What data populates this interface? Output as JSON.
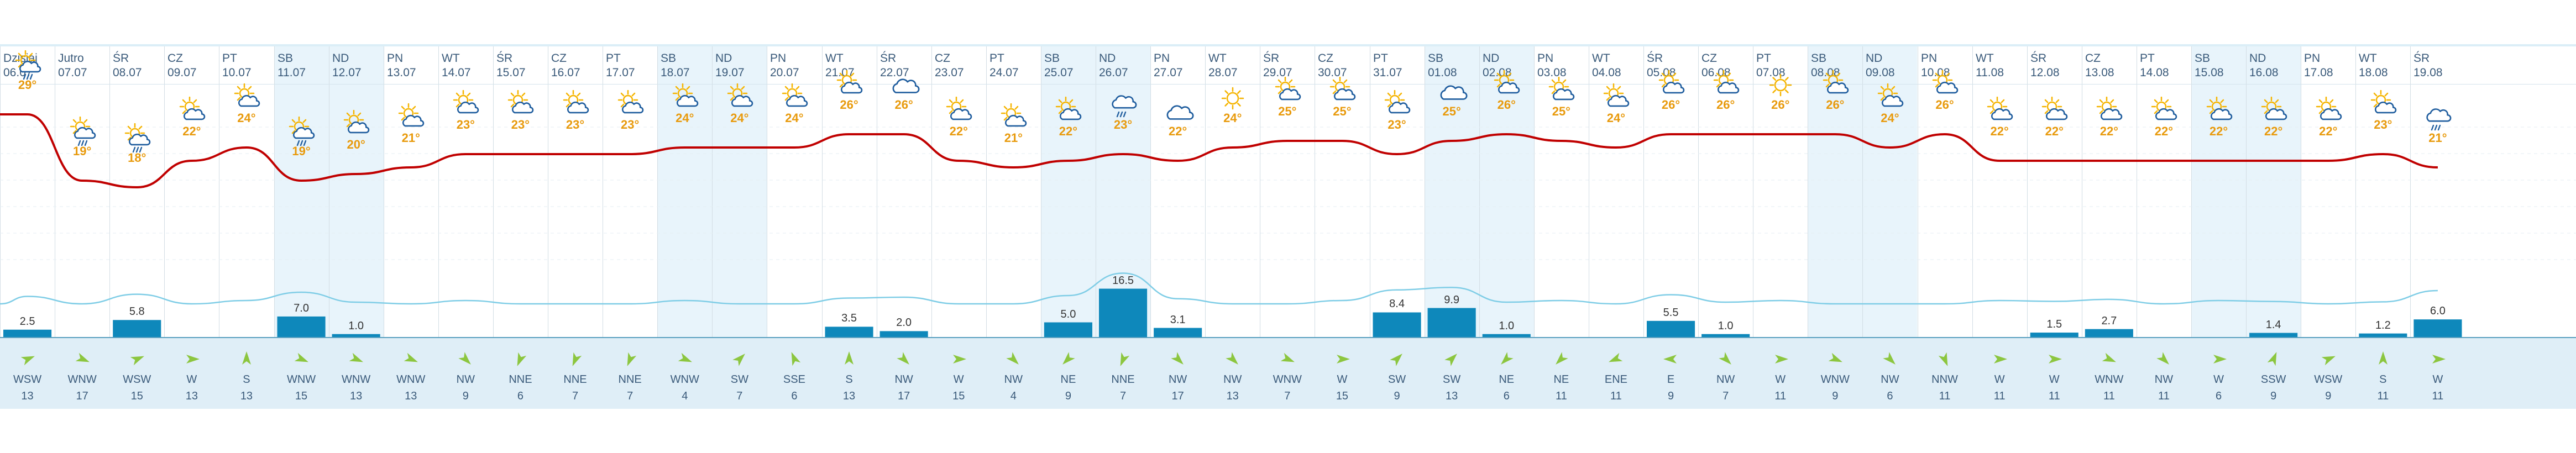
{
  "forecast": {
    "days": [
      {
        "day": "Dzisiaj",
        "date": "06.07",
        "weekend": false,
        "icon": "sun-cloud-rain-icon",
        "temp": "29°",
        "precip": 2.5,
        "precip_label": "2.5",
        "wind_dir": "WSW",
        "wind_speed": "13"
      },
      {
        "day": "Jutro",
        "date": "07.07",
        "weekend": false,
        "icon": "sun-cloud-rain-icon",
        "temp": "19°",
        "precip": 0,
        "precip_label": "",
        "wind_dir": "WNW",
        "wind_speed": "17"
      },
      {
        "day": "ŚR",
        "date": "08.07",
        "weekend": false,
        "icon": "sun-cloud-rain-icon",
        "temp": "18°",
        "precip": 5.8,
        "precip_label": "5.8",
        "wind_dir": "WSW",
        "wind_speed": "15"
      },
      {
        "day": "CZ",
        "date": "09.07",
        "weekend": false,
        "icon": "sun-cloud-icon",
        "temp": "22°",
        "precip": 0,
        "precip_label": "",
        "wind_dir": "W",
        "wind_speed": "13"
      },
      {
        "day": "PT",
        "date": "10.07",
        "weekend": false,
        "icon": "sun-cloud-icon",
        "temp": "24°",
        "precip": 0,
        "precip_label": "",
        "wind_dir": "S",
        "wind_speed": "13"
      },
      {
        "day": "SB",
        "date": "11.07",
        "weekend": true,
        "icon": "sun-cloud-rain-icon",
        "temp": "19°",
        "precip": 7.0,
        "precip_label": "7.0",
        "wind_dir": "WNW",
        "wind_speed": "15"
      },
      {
        "day": "ND",
        "date": "12.07",
        "weekend": true,
        "icon": "sun-cloud-icon",
        "temp": "20°",
        "precip": 1.0,
        "precip_label": "1.0",
        "wind_dir": "WNW",
        "wind_speed": "13"
      },
      {
        "day": "PN",
        "date": "13.07",
        "weekend": false,
        "icon": "sun-cloud-icon",
        "temp": "21°",
        "precip": 0,
        "precip_label": "",
        "wind_dir": "WNW",
        "wind_speed": "13"
      },
      {
        "day": "WT",
        "date": "14.07",
        "weekend": false,
        "icon": "sun-cloud-icon",
        "temp": "23°",
        "precip": 0,
        "precip_label": "",
        "wind_dir": "NW",
        "wind_speed": "9"
      },
      {
        "day": "ŚR",
        "date": "15.07",
        "weekend": false,
        "icon": "sun-cloud-icon",
        "temp": "23°",
        "precip": 0,
        "precip_label": "",
        "wind_dir": "NNE",
        "wind_speed": "6"
      },
      {
        "day": "CZ",
        "date": "16.07",
        "weekend": false,
        "icon": "sun-cloud-icon",
        "temp": "23°",
        "precip": 0,
        "precip_label": "",
        "wind_dir": "NNE",
        "wind_speed": "7"
      },
      {
        "day": "PT",
        "date": "17.07",
        "weekend": false,
        "icon": "sun-cloud-icon",
        "temp": "23°",
        "precip": 0,
        "precip_label": "",
        "wind_dir": "NNE",
        "wind_speed": "7"
      },
      {
        "day": "SB",
        "date": "18.07",
        "weekend": true,
        "icon": "sun-cloud-icon",
        "temp": "24°",
        "precip": 0,
        "precip_label": "",
        "wind_dir": "WNW",
        "wind_speed": "4"
      },
      {
        "day": "ND",
        "date": "19.07",
        "weekend": true,
        "icon": "sun-cloud-icon",
        "temp": "24°",
        "precip": 0,
        "precip_label": "",
        "wind_dir": "SW",
        "wind_speed": "7"
      },
      {
        "day": "PN",
        "date": "20.07",
        "weekend": false,
        "icon": "sun-cloud-icon",
        "temp": "24°",
        "precip": 0,
        "precip_label": "",
        "wind_dir": "SSE",
        "wind_speed": "6"
      },
      {
        "day": "WT",
        "date": "21.07",
        "weekend": false,
        "icon": "sun-cloud-icon",
        "temp": "26°",
        "precip": 3.5,
        "precip_label": "3.5",
        "wind_dir": "S",
        "wind_speed": "13"
      },
      {
        "day": "ŚR",
        "date": "22.07",
        "weekend": false,
        "icon": "cloud-icon",
        "temp": "26°",
        "precip": 2.0,
        "precip_label": "2.0",
        "wind_dir": "NW",
        "wind_speed": "17"
      },
      {
        "day": "CZ",
        "date": "23.07",
        "weekend": false,
        "icon": "sun-cloud-icon",
        "temp": "22°",
        "precip": 0,
        "precip_label": "",
        "wind_dir": "W",
        "wind_speed": "15"
      },
      {
        "day": "PT",
        "date": "24.07",
        "weekend": false,
        "icon": "sun-cloud-icon",
        "temp": "21°",
        "precip": 0,
        "precip_label": "",
        "wind_dir": "NW",
        "wind_speed": "4"
      },
      {
        "day": "SB",
        "date": "25.07",
        "weekend": true,
        "icon": "sun-cloud-icon",
        "temp": "22°",
        "precip": 5.0,
        "precip_label": "5.0",
        "wind_dir": "NE",
        "wind_speed": "9"
      },
      {
        "day": "ND",
        "date": "26.07",
        "weekend": true,
        "icon": "cloud-rain-icon",
        "temp": "23°",
        "precip": 16.5,
        "precip_label": "16.5",
        "wind_dir": "NNE",
        "wind_speed": "7"
      },
      {
        "day": "PN",
        "date": "27.07",
        "weekend": false,
        "icon": "cloud-icon",
        "temp": "22°",
        "precip": 3.1,
        "precip_label": "3.1",
        "wind_dir": "NW",
        "wind_speed": "17"
      },
      {
        "day": "WT",
        "date": "28.07",
        "weekend": false,
        "icon": "sun-icon",
        "temp": "24°",
        "precip": 0,
        "precip_label": "",
        "wind_dir": "NW",
        "wind_speed": "13"
      },
      {
        "day": "ŚR",
        "date": "29.07",
        "weekend": false,
        "icon": "sun-cloud-icon",
        "temp": "25°",
        "precip": 0,
        "precip_label": "",
        "wind_dir": "WNW",
        "wind_speed": "7"
      },
      {
        "day": "CZ",
        "date": "30.07",
        "weekend": false,
        "icon": "sun-cloud-icon",
        "temp": "25°",
        "precip": 0,
        "precip_label": "",
        "wind_dir": "W",
        "wind_speed": "15"
      },
      {
        "day": "PT",
        "date": "31.07",
        "weekend": false,
        "icon": "sun-cloud-icon",
        "temp": "23°",
        "precip": 8.4,
        "precip_label": "8.4",
        "wind_dir": "SW",
        "wind_speed": "9"
      },
      {
        "day": "SB",
        "date": "01.08",
        "weekend": true,
        "icon": "cloud-icon",
        "temp": "25°",
        "precip": 9.9,
        "precip_label": "9.9",
        "wind_dir": "SW",
        "wind_speed": "13"
      },
      {
        "day": "ND",
        "date": "02.08",
        "weekend": true,
        "icon": "sun-cloud-icon",
        "temp": "26°",
        "precip": 1.0,
        "precip_label": "1.0",
        "wind_dir": "NE",
        "wind_speed": "6"
      },
      {
        "day": "PN",
        "date": "03.08",
        "weekend": false,
        "icon": "sun-cloud-icon",
        "temp": "25°",
        "precip": 0,
        "precip_label": "",
        "wind_dir": "NE",
        "wind_speed": "11"
      },
      {
        "day": "WT",
        "date": "04.08",
        "weekend": false,
        "icon": "sun-cloud-icon",
        "temp": "24°",
        "precip": 0,
        "precip_label": "",
        "wind_dir": "ENE",
        "wind_speed": "11"
      },
      {
        "day": "ŚR",
        "date": "05.08",
        "weekend": false,
        "icon": "sun-cloud-icon",
        "temp": "26°",
        "precip": 5.5,
        "precip_label": "5.5",
        "wind_dir": "E",
        "wind_speed": "9"
      },
      {
        "day": "CZ",
        "date": "06.08",
        "weekend": false,
        "icon": "sun-cloud-icon",
        "temp": "26°",
        "precip": 1.0,
        "precip_label": "1.0",
        "wind_dir": "NW",
        "wind_speed": "7"
      },
      {
        "day": "PT",
        "date": "07.08",
        "weekend": false,
        "icon": "sun-icon",
        "temp": "26°",
        "precip": 0,
        "precip_label": "",
        "wind_dir": "W",
        "wind_speed": "11"
      },
      {
        "day": "SB",
        "date": "08.08",
        "weekend": true,
        "icon": "sun-cloud-icon",
        "temp": "26°",
        "precip": 0,
        "precip_label": "",
        "wind_dir": "WNW",
        "wind_speed": "9"
      },
      {
        "day": "ND",
        "date": "09.08",
        "weekend": true,
        "icon": "sun-cloud-icon",
        "temp": "24°",
        "precip": 0,
        "precip_label": "",
        "wind_dir": "NW",
        "wind_speed": "6"
      },
      {
        "day": "PN",
        "date": "10.08",
        "weekend": false,
        "icon": "sun-cloud-icon",
        "temp": "26°",
        "precip": 0,
        "precip_label": "",
        "wind_dir": "NNW",
        "wind_speed": "11"
      },
      {
        "day": "WT",
        "date": "11.08",
        "weekend": false,
        "icon": "sun-cloud-icon",
        "temp": "22°",
        "precip": 0,
        "precip_label": "",
        "wind_dir": "W",
        "wind_speed": "11"
      },
      {
        "day": "ŚR",
        "date": "12.08",
        "weekend": false,
        "icon": "sun-cloud-icon",
        "temp": "22°",
        "precip": 1.5,
        "precip_label": "1.5",
        "wind_dir": "W",
        "wind_speed": "11"
      },
      {
        "day": "CZ",
        "date": "13.08",
        "weekend": false,
        "icon": "sun-cloud-icon",
        "temp": "22°",
        "precip": 2.7,
        "precip_label": "2.7",
        "wind_dir": "WNW",
        "wind_speed": "11"
      },
      {
        "day": "PT",
        "date": "14.08",
        "weekend": false,
        "icon": "sun-cloud-icon",
        "temp": "22°",
        "precip": 0,
        "precip_label": "",
        "wind_dir": "NW",
        "wind_speed": "11"
      },
      {
        "day": "SB",
        "date": "15.08",
        "weekend": true,
        "icon": "sun-cloud-icon",
        "temp": "22°",
        "precip": 0,
        "precip_label": "",
        "wind_dir": "W",
        "wind_speed": "6"
      },
      {
        "day": "ND",
        "date": "16.08",
        "weekend": true,
        "icon": "sun-cloud-icon",
        "temp": "22°",
        "precip": 1.4,
        "precip_label": "1.4",
        "wind_dir": "SSW",
        "wind_speed": "9"
      },
      {
        "day": "PN",
        "date": "17.08",
        "weekend": false,
        "icon": "sun-cloud-icon",
        "temp": "22°",
        "precip": 0,
        "precip_label": "",
        "wind_dir": "WSW",
        "wind_speed": "9"
      },
      {
        "day": "WT",
        "date": "18.08",
        "weekend": false,
        "icon": "sun-cloud-icon",
        "temp": "23°",
        "precip": 1.2,
        "precip_label": "1.2",
        "wind_dir": "S",
        "wind_speed": "11"
      },
      {
        "day": "ŚR",
        "date": "19.08",
        "weekend": false,
        "icon": "cloud-rain-icon",
        "temp": "21°",
        "precip": 6.0,
        "precip_label": "6.0",
        "wind_dir": "W",
        "wind_speed": "11"
      }
    ],
    "colors": {
      "temp_line": "#c00000",
      "secondary_line": "#7fcde6",
      "precip_bar": "#0e88bb",
      "weekend_bg": "#e8f4fb",
      "temp_text": "#e89a0c",
      "sun": "#f5b400",
      "cloud": "#1f5d9e",
      "wind_arrow": "#8cc63f"
    }
  }
}
